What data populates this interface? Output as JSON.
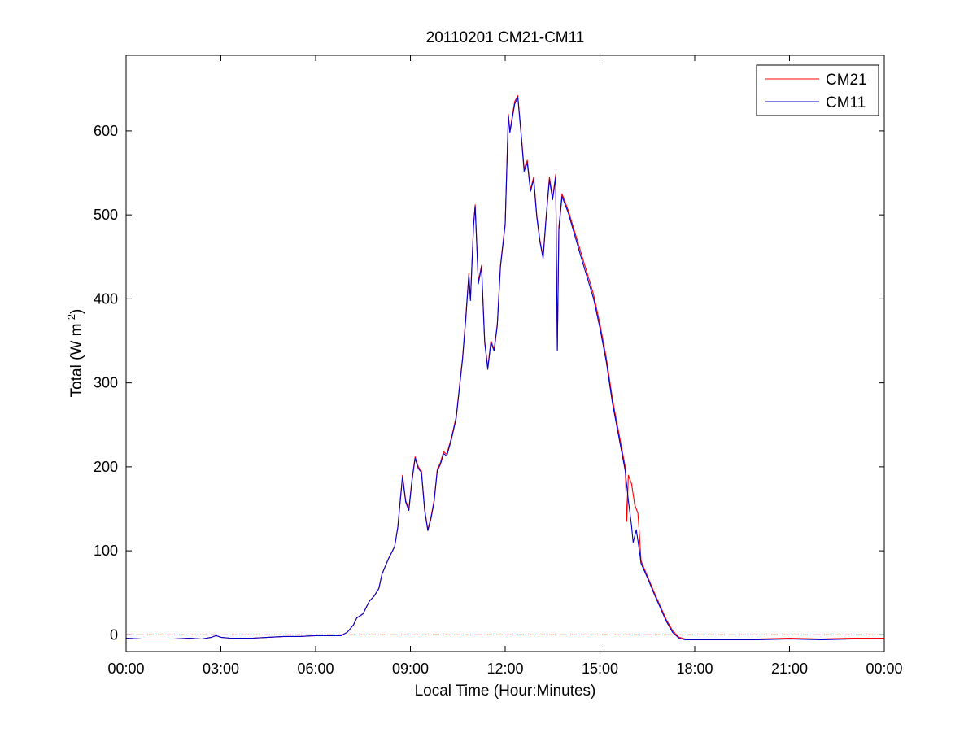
{
  "chart_data": {
    "type": "line",
    "title": "20110201 CM21-CM11",
    "xlabel": "Local Time (Hour:Minutes)",
    "ylabel_main": "Total (W m",
    "ylabel_sup": "-2",
    "ylabel_end": ")",
    "xlim": [
      0,
      24
    ],
    "ylim": [
      -20,
      690
    ],
    "xticks": [
      0,
      3,
      6,
      9,
      12,
      15,
      18,
      21,
      24
    ],
    "xtick_labels": [
      "00:00",
      "03:00",
      "06:00",
      "09:00",
      "12:00",
      "15:00",
      "18:00",
      "21:00",
      "00:00"
    ],
    "yticks": [
      0,
      100,
      200,
      300,
      400,
      500,
      600
    ],
    "ytick_labels": [
      "0",
      "100",
      "200",
      "300",
      "400",
      "500",
      "600"
    ],
    "grid": false,
    "legend_position": "top-right",
    "reference_line": {
      "y": 0,
      "color": "#cc0000",
      "style": "dashed"
    },
    "series": [
      {
        "name": "CM21",
        "color": "#ff0000",
        "points": [
          [
            0,
            -4
          ],
          [
            0.5,
            -5
          ],
          [
            1,
            -5
          ],
          [
            1.5,
            -5
          ],
          [
            2,
            -4
          ],
          [
            2.4,
            -5
          ],
          [
            2.7,
            -3
          ],
          [
            2.85,
            -1
          ],
          [
            3,
            -3
          ],
          [
            3.3,
            -4
          ],
          [
            3.6,
            -4
          ],
          [
            4,
            -4
          ],
          [
            4.5,
            -3
          ],
          [
            5,
            -2
          ],
          [
            5.5,
            -2
          ],
          [
            6,
            -1
          ],
          [
            6.5,
            -1
          ],
          [
            6.8,
            -1
          ],
          [
            7,
            3
          ],
          [
            7.2,
            12
          ],
          [
            7.3,
            20
          ],
          [
            7.5,
            25
          ],
          [
            7.7,
            40
          ],
          [
            7.85,
            46
          ],
          [
            8,
            55
          ],
          [
            8.1,
            72
          ],
          [
            8.3,
            90
          ],
          [
            8.5,
            105
          ],
          [
            8.6,
            128
          ],
          [
            8.75,
            190
          ],
          [
            8.85,
            160
          ],
          [
            8.95,
            150
          ],
          [
            9.05,
            185
          ],
          [
            9.15,
            212
          ],
          [
            9.25,
            200
          ],
          [
            9.35,
            195
          ],
          [
            9.45,
            150
          ],
          [
            9.55,
            125
          ],
          [
            9.65,
            140
          ],
          [
            9.75,
            160
          ],
          [
            9.85,
            197
          ],
          [
            9.95,
            205
          ],
          [
            10.05,
            218
          ],
          [
            10.15,
            215
          ],
          [
            10.3,
            235
          ],
          [
            10.45,
            260
          ],
          [
            10.55,
            295
          ],
          [
            10.65,
            330
          ],
          [
            10.75,
            378
          ],
          [
            10.85,
            430
          ],
          [
            10.9,
            400
          ],
          [
            11,
            490
          ],
          [
            11.05,
            512
          ],
          [
            11.15,
            420
          ],
          [
            11.25,
            440
          ],
          [
            11.35,
            350
          ],
          [
            11.45,
            318
          ],
          [
            11.55,
            350
          ],
          [
            11.65,
            340
          ],
          [
            11.75,
            370
          ],
          [
            11.85,
            440
          ],
          [
            12,
            490
          ],
          [
            12.1,
            620
          ],
          [
            12.15,
            600
          ],
          [
            12.3,
            635
          ],
          [
            12.4,
            642
          ],
          [
            12.5,
            600
          ],
          [
            12.6,
            555
          ],
          [
            12.7,
            565
          ],
          [
            12.8,
            530
          ],
          [
            12.9,
            545
          ],
          [
            13,
            500
          ],
          [
            13.1,
            470
          ],
          [
            13.2,
            450
          ],
          [
            13.3,
            500
          ],
          [
            13.4,
            545
          ],
          [
            13.5,
            520
          ],
          [
            13.6,
            548
          ],
          [
            13.65,
            340
          ],
          [
            13.7,
            485
          ],
          [
            13.8,
            525
          ],
          [
            13.9,
            515
          ],
          [
            14,
            505
          ],
          [
            14.2,
            480
          ],
          [
            14.4,
            455
          ],
          [
            14.6,
            430
          ],
          [
            14.8,
            405
          ],
          [
            15,
            370
          ],
          [
            15.2,
            330
          ],
          [
            15.4,
            280
          ],
          [
            15.6,
            240
          ],
          [
            15.8,
            200
          ],
          [
            15.85,
            135
          ],
          [
            15.9,
            190
          ],
          [
            16,
            180
          ],
          [
            16.1,
            155
          ],
          [
            16.2,
            145
          ],
          [
            16.25,
            120
          ],
          [
            16.3,
            88
          ],
          [
            16.5,
            70
          ],
          [
            16.7,
            52
          ],
          [
            16.9,
            35
          ],
          [
            17.1,
            18
          ],
          [
            17.3,
            5
          ],
          [
            17.5,
            -3
          ],
          [
            17.7,
            -5
          ],
          [
            18,
            -5
          ],
          [
            18.5,
            -5
          ],
          [
            19,
            -5
          ],
          [
            20,
            -5
          ],
          [
            21,
            -4
          ],
          [
            22,
            -5
          ],
          [
            23,
            -4
          ],
          [
            24,
            -4
          ]
        ]
      },
      {
        "name": "CM11",
        "color": "#0000cc",
        "points": [
          [
            0,
            -4
          ],
          [
            0.5,
            -5
          ],
          [
            1,
            -5
          ],
          [
            1.5,
            -5
          ],
          [
            2,
            -4
          ],
          [
            2.4,
            -5
          ],
          [
            2.7,
            -3
          ],
          [
            2.85,
            -1
          ],
          [
            3,
            -3
          ],
          [
            3.3,
            -4
          ],
          [
            3.6,
            -4
          ],
          [
            4,
            -4
          ],
          [
            4.5,
            -3
          ],
          [
            5,
            -2
          ],
          [
            5.5,
            -2
          ],
          [
            6,
            -1
          ],
          [
            6.5,
            -1
          ],
          [
            6.8,
            -1
          ],
          [
            7,
            3
          ],
          [
            7.2,
            12
          ],
          [
            7.3,
            20
          ],
          [
            7.5,
            25
          ],
          [
            7.7,
            40
          ],
          [
            7.85,
            46
          ],
          [
            8,
            55
          ],
          [
            8.1,
            72
          ],
          [
            8.3,
            90
          ],
          [
            8.5,
            105
          ],
          [
            8.6,
            128
          ],
          [
            8.75,
            188
          ],
          [
            8.85,
            158
          ],
          [
            8.95,
            148
          ],
          [
            9.05,
            183
          ],
          [
            9.15,
            210
          ],
          [
            9.25,
            198
          ],
          [
            9.35,
            193
          ],
          [
            9.45,
            148
          ],
          [
            9.55,
            124
          ],
          [
            9.65,
            138
          ],
          [
            9.75,
            158
          ],
          [
            9.85,
            195
          ],
          [
            9.95,
            203
          ],
          [
            10.05,
            216
          ],
          [
            10.15,
            213
          ],
          [
            10.3,
            233
          ],
          [
            10.45,
            258
          ],
          [
            10.55,
            293
          ],
          [
            10.65,
            328
          ],
          [
            10.75,
            375
          ],
          [
            10.85,
            428
          ],
          [
            10.9,
            398
          ],
          [
            11,
            488
          ],
          [
            11.05,
            510
          ],
          [
            11.15,
            418
          ],
          [
            11.25,
            438
          ],
          [
            11.35,
            348
          ],
          [
            11.45,
            316
          ],
          [
            11.55,
            348
          ],
          [
            11.65,
            338
          ],
          [
            11.75,
            368
          ],
          [
            11.85,
            438
          ],
          [
            12,
            488
          ],
          [
            12.1,
            618
          ],
          [
            12.15,
            598
          ],
          [
            12.3,
            632
          ],
          [
            12.4,
            640
          ],
          [
            12.5,
            598
          ],
          [
            12.6,
            552
          ],
          [
            12.7,
            562
          ],
          [
            12.8,
            528
          ],
          [
            12.9,
            542
          ],
          [
            13,
            498
          ],
          [
            13.1,
            468
          ],
          [
            13.2,
            448
          ],
          [
            13.3,
            498
          ],
          [
            13.4,
            542
          ],
          [
            13.5,
            518
          ],
          [
            13.6,
            545
          ],
          [
            13.65,
            338
          ],
          [
            13.7,
            482
          ],
          [
            13.8,
            522
          ],
          [
            13.9,
            512
          ],
          [
            14,
            502
          ],
          [
            14.2,
            476
          ],
          [
            14.4,
            450
          ],
          [
            14.6,
            425
          ],
          [
            14.8,
            400
          ],
          [
            15,
            365
          ],
          [
            15.2,
            325
          ],
          [
            15.4,
            275
          ],
          [
            15.6,
            235
          ],
          [
            15.8,
            195
          ],
          [
            15.9,
            160
          ],
          [
            16,
            130
          ],
          [
            16.05,
            110
          ],
          [
            16.15,
            125
          ],
          [
            16.25,
            100
          ],
          [
            16.3,
            85
          ],
          [
            16.5,
            68
          ],
          [
            16.7,
            50
          ],
          [
            16.9,
            33
          ],
          [
            17.1,
            16
          ],
          [
            17.3,
            3
          ],
          [
            17.5,
            -4
          ],
          [
            17.7,
            -6
          ],
          [
            18,
            -6
          ],
          [
            18.5,
            -6
          ],
          [
            19,
            -6
          ],
          [
            20,
            -6
          ],
          [
            21,
            -5
          ],
          [
            22,
            -6
          ],
          [
            23,
            -5
          ],
          [
            24,
            -5
          ]
        ]
      }
    ]
  }
}
